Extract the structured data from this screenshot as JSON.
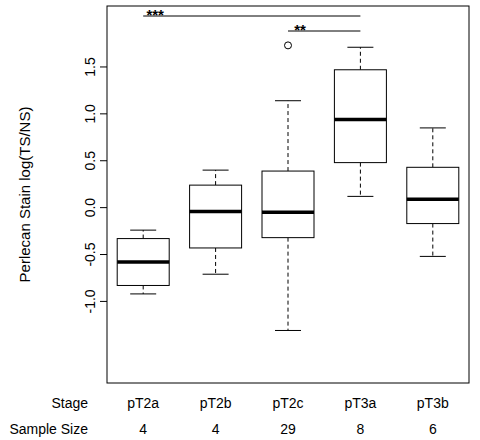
{
  "chart_data": {
    "type": "box",
    "y_label": "Perlecan Stain log(TS/NS)",
    "x_label": "Stage",
    "categories": [
      "pT2a",
      "pT2b",
      "pT2c",
      "pT3a",
      "pT3b"
    ],
    "boxes": [
      {
        "whisker_low": -0.92,
        "q1": -0.83,
        "median": -0.58,
        "q3": -0.33,
        "whisker_high": -0.24,
        "outliers": []
      },
      {
        "whisker_low": -0.71,
        "q1": -0.43,
        "median": -0.04,
        "q3": 0.24,
        "whisker_high": 0.4,
        "outliers": []
      },
      {
        "whisker_low": -1.31,
        "q1": -0.32,
        "median": -0.05,
        "q3": 0.39,
        "whisker_high": 1.14,
        "outliers": [
          1.73
        ]
      },
      {
        "whisker_low": 0.12,
        "q1": 0.48,
        "median": 0.94,
        "q3": 1.47,
        "whisker_high": 1.71,
        "outliers": []
      },
      {
        "whisker_low": -0.52,
        "q1": -0.17,
        "median": 0.09,
        "q3": 0.43,
        "whisker_high": 0.85,
        "outliers": []
      }
    ],
    "sample_size_label": "Sample Size",
    "sample_sizes": [
      4,
      4,
      29,
      8,
      6
    ],
    "annotations": [
      {
        "label": "***",
        "from": "pT2a",
        "to": "pT3a"
      },
      {
        "label": "**",
        "from": "pT2c",
        "to": "pT3a"
      }
    ],
    "ylim": [
      -1.87,
      2.15
    ],
    "yticks": [
      {
        "value": -1,
        "label": "-1.0"
      },
      -0.5,
      {
        "value": 0,
        "label": "0.0"
      },
      0.5,
      {
        "value": 1,
        "label": "1.0"
      },
      1.5
    ],
    "grid": false,
    "color": "#000000"
  }
}
